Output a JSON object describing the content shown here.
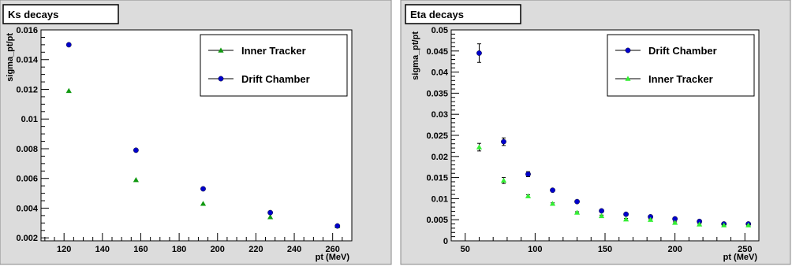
{
  "colors": {
    "canvas_bg": "#dcdcdc",
    "frame": "#000000",
    "drift_chamber": "#0000cc",
    "inner_tracker_left": "#119911",
    "inner_tracker_right": "#33ee33"
  },
  "chart_data": [
    {
      "type": "scatter",
      "title": "Ks decays",
      "xlabel": "pt (MeV)",
      "ylabel": "sigma_pt/pt",
      "xlim": [
        108,
        270
      ],
      "ylim": [
        0.0018,
        0.016
      ],
      "xticks": [
        120,
        140,
        160,
        180,
        200,
        220,
        240,
        260
      ],
      "yticks": [
        0.002,
        0.004,
        0.006,
        0.008,
        0.01,
        0.012,
        0.014,
        0.016
      ],
      "ytick_labels": [
        "0.002",
        "0.004",
        "0.006",
        "0.008",
        "0.01",
        "0.012",
        "0.014",
        "0.016"
      ],
      "legend_position": "top-right",
      "grid": false,
      "series": [
        {
          "name": "Inner Tracker",
          "marker": "triangle",
          "color": "#119911",
          "x": [
            122.5,
            157.5,
            192.5,
            227.5,
            262.5
          ],
          "y": [
            0.0119,
            0.0059,
            0.0043,
            0.0034,
            0.0028
          ]
        },
        {
          "name": "Drift Chamber",
          "marker": "circle",
          "color": "#0000cc",
          "x": [
            122.5,
            157.5,
            192.5,
            227.5,
            262.5
          ],
          "y": [
            0.015,
            0.0079,
            0.0053,
            0.0037,
            0.0028
          ]
        }
      ]
    },
    {
      "type": "scatter",
      "title": "Eta decays",
      "xlabel": "pt (MeV)",
      "ylabel": "sigma_pt/pt",
      "xlim": [
        40,
        260
      ],
      "ylim": [
        0,
        0.05
      ],
      "xticks": [
        50,
        100,
        150,
        200,
        250
      ],
      "yticks": [
        0,
        0.005,
        0.01,
        0.015,
        0.02,
        0.025,
        0.03,
        0.035,
        0.04,
        0.045,
        0.05
      ],
      "ytick_labels": [
        "0",
        "0.005",
        "0.01",
        "0.015",
        "0.02",
        "0.025",
        "0.03",
        "0.035",
        "0.04",
        "0.045",
        "0.05"
      ],
      "legend_position": "top-right",
      "grid": false,
      "series": [
        {
          "name": "Drift Chamber",
          "marker": "circle",
          "color": "#0000cc",
          "x": [
            60,
            77.5,
            95,
            112.5,
            130,
            147.5,
            165,
            182.5,
            200,
            217.5,
            235,
            252.5
          ],
          "y": [
            0.0445,
            0.0235,
            0.0158,
            0.012,
            0.0093,
            0.0071,
            0.0063,
            0.0057,
            0.0052,
            0.0046,
            0.004,
            0.004
          ],
          "yerr": [
            0.0022,
            0.0009,
            0.0006,
            0.0002,
            0.0002,
            0.0002,
            0.0002,
            0.0002,
            0.0002,
            0.0002,
            0.0002,
            0.0002
          ]
        },
        {
          "name": "Inner Tracker",
          "marker": "triangle",
          "color": "#33ee33",
          "x": [
            60,
            77.5,
            95,
            112.5,
            130,
            147.5,
            165,
            182.5,
            200,
            217.5,
            235,
            252.5
          ],
          "y": [
            0.0222,
            0.0143,
            0.0106,
            0.0088,
            0.0067,
            0.0059,
            0.0051,
            0.005,
            0.0043,
            0.0039,
            0.0037,
            0.0037
          ],
          "yerr": [
            0.0009,
            0.0007,
            0.0003,
            0.0002,
            0.0002,
            0.0002,
            0.0002,
            0.0002,
            0.0002,
            0.0002,
            0.0002,
            0.0002
          ]
        }
      ]
    }
  ]
}
